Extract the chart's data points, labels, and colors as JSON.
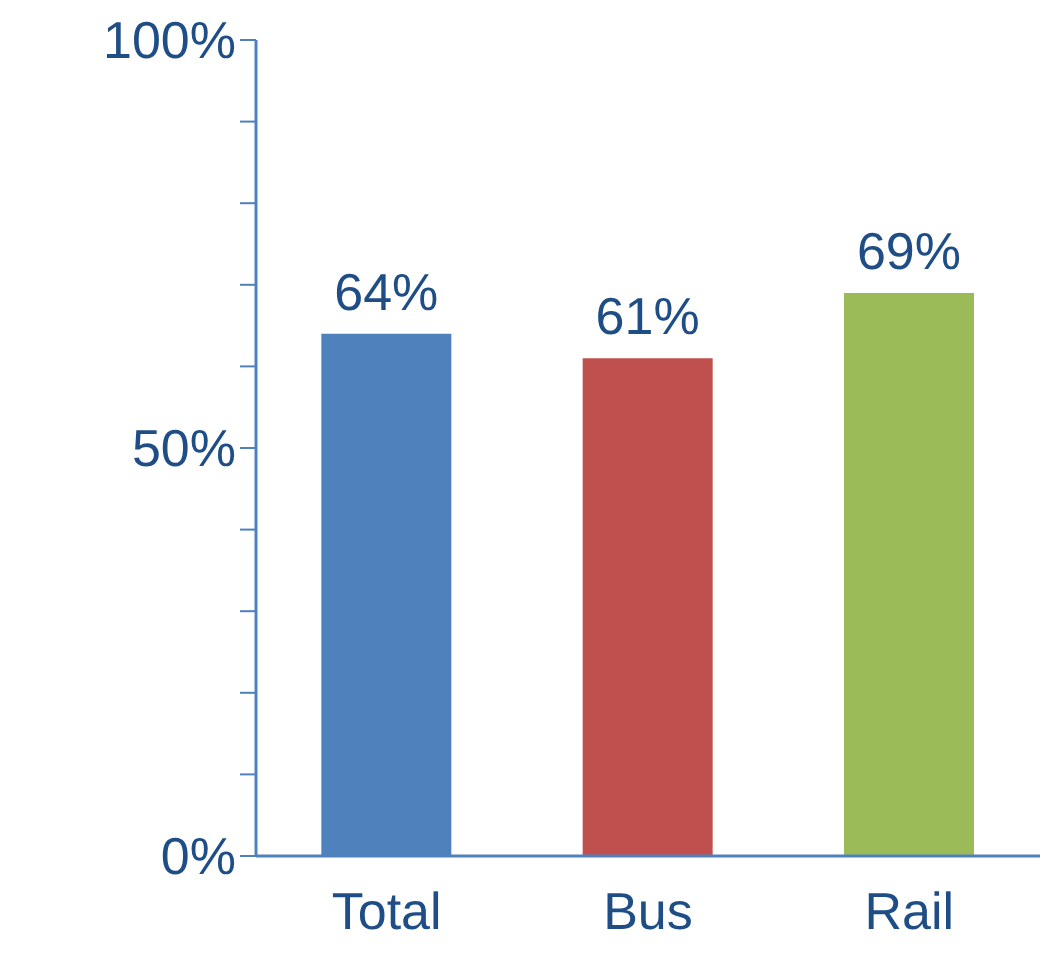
{
  "chart_data": {
    "type": "bar",
    "categories": [
      "Total",
      "Bus",
      "Rail"
    ],
    "values": [
      64,
      61,
      69
    ],
    "colors": [
      "#4f81bd",
      "#c0504d",
      "#9bbb59"
    ],
    "value_labels": [
      "64%",
      "61%",
      "69%"
    ],
    "ylim": [
      0,
      100
    ],
    "yticks": [
      {
        "value": 0,
        "label": "0%"
      },
      {
        "value": 10,
        "label": null
      },
      {
        "value": 20,
        "label": null
      },
      {
        "value": 30,
        "label": null
      },
      {
        "value": 40,
        "label": null
      },
      {
        "value": 50,
        "label": "50%"
      },
      {
        "value": 60,
        "label": null
      },
      {
        "value": 70,
        "label": null
      },
      {
        "value": 80,
        "label": null
      },
      {
        "value": 90,
        "label": null
      },
      {
        "value": 100,
        "label": "100%"
      }
    ],
    "grid": false,
    "legend": false
  }
}
